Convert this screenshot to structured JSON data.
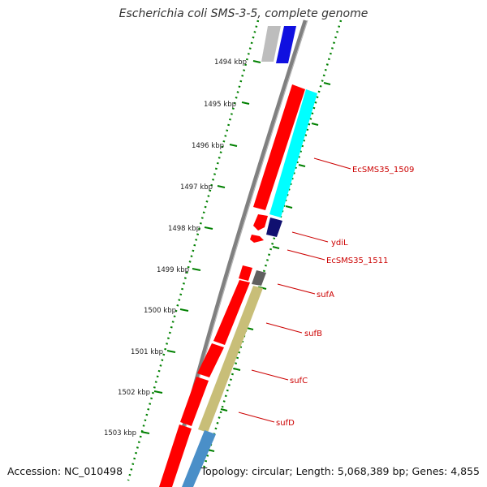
{
  "title": "Escherichia coli SMS-3-5, complete genome",
  "footer": {
    "accession": "Accession: NC_010498",
    "summary": "Topology: circular; Length: 5,068,389 bp; Genes: 4,855"
  },
  "colors": {
    "backbone": "#808080",
    "tick_ring": "#008000",
    "label_text": "#cc0000",
    "leader_line": "#cc0000",
    "forward_cds": "#ff0000",
    "gray_feature": "#bdbdbd",
    "blue_feature": "#1010e0",
    "cyan_feature": "#00ffff",
    "navy_feature": "#101070",
    "darkgray_feature": "#606060",
    "olive_feature": "#c8be78",
    "steelblue_feature": "#4a8fc8"
  },
  "tick_labels": [
    "1494 kbp",
    "1495 kbp",
    "1496 kbp",
    "1497 kbp",
    "1498 kbp",
    "1499 kbp",
    "1500 kbp",
    "1501 kbp",
    "1502 kbp",
    "1503 kbp"
  ],
  "gene_labels": [
    {
      "name": "EcSMS35_1509"
    },
    {
      "name": "ydiL"
    },
    {
      "name": "EcSMS35_1511"
    },
    {
      "name": "sufA"
    },
    {
      "name": "sufB"
    },
    {
      "name": "sufC"
    },
    {
      "name": "sufD"
    }
  ]
}
